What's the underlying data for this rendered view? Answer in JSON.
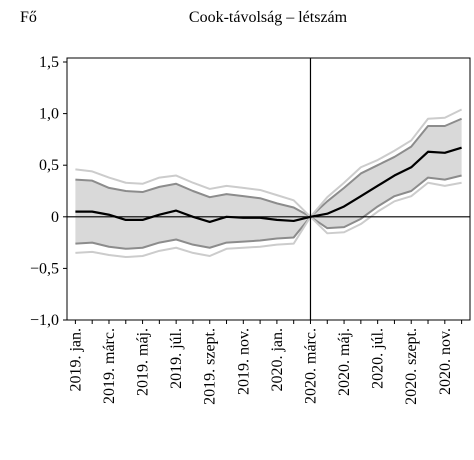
{
  "chart_data": {
    "type": "line",
    "title": "Cook-távolság – létszám",
    "y_label": "Fő",
    "categories": [
      "2019. jan.",
      null,
      "2019. márc.",
      null,
      "2019. máj.",
      null,
      "2019. júl.",
      null,
      "2019. szept.",
      null,
      "2019. nov.",
      null,
      "2020. jan.",
      null,
      "2020. márc.",
      null,
      "2020. máj.",
      null,
      "2020. júl.",
      null,
      "2020. szept.",
      null,
      "2020. nov.",
      null
    ],
    "vline": "2020. márc.",
    "band": {
      "color": "#d9d9d9",
      "edge_color": "#8c8c8c",
      "upper": [
        0.36,
        0.35,
        0.28,
        0.25,
        0.24,
        0.29,
        0.32,
        0.25,
        0.19,
        0.22,
        0.2,
        0.18,
        0.13,
        0.09,
        0,
        0.15,
        0.28,
        0.42,
        0.5,
        0.58,
        0.68,
        0.88,
        0.88,
        0.95
      ],
      "lower": [
        -0.26,
        -0.25,
        -0.29,
        -0.31,
        -0.3,
        -0.25,
        -0.22,
        -0.27,
        -0.3,
        -0.25,
        -0.24,
        -0.23,
        -0.21,
        -0.2,
        0,
        -0.11,
        -0.1,
        -0.02,
        0.1,
        0.2,
        0.25,
        0.38,
        0.36,
        0.4
      ]
    },
    "series": [
      {
        "color": "#cccccc",
        "values": [
          0.46,
          0.44,
          0.38,
          0.33,
          0.32,
          0.38,
          0.4,
          0.33,
          0.27,
          0.3,
          0.28,
          0.26,
          0.21,
          0.16,
          0,
          0.19,
          0.33,
          0.48,
          0.55,
          0.64,
          0.74,
          0.95,
          0.96,
          1.04
        ]
      },
      {
        "color": "#cccccc",
        "values": [
          -0.35,
          -0.34,
          -0.37,
          -0.39,
          -0.38,
          -0.33,
          -0.3,
          -0.35,
          -0.38,
          -0.31,
          -0.3,
          -0.29,
          -0.27,
          -0.26,
          0,
          -0.16,
          -0.15,
          -0.07,
          0.05,
          0.15,
          0.2,
          0.33,
          0.3,
          0.33
        ]
      },
      {
        "color": "#000000",
        "values": [
          0.05,
          0.05,
          0.02,
          -0.03,
          -0.03,
          0.02,
          0.06,
          0.0,
          -0.05,
          0.0,
          -0.01,
          -0.01,
          -0.03,
          -0.04,
          0,
          0.03,
          0.1,
          0.2,
          0.3,
          0.4,
          0.48,
          0.63,
          0.62,
          0.67
        ]
      }
    ],
    "ylim": [
      -1,
      1.5
    ],
    "yticks": [
      {
        "value": -1,
        "label": "−1,0"
      },
      {
        "value": -0.5,
        "label": "−0,5"
      },
      0,
      {
        "value": 0.5,
        "label": "0,5"
      },
      {
        "value": 1,
        "label": "1,0"
      },
      {
        "value": 1.5,
        "label": "1,5"
      }
    ]
  }
}
